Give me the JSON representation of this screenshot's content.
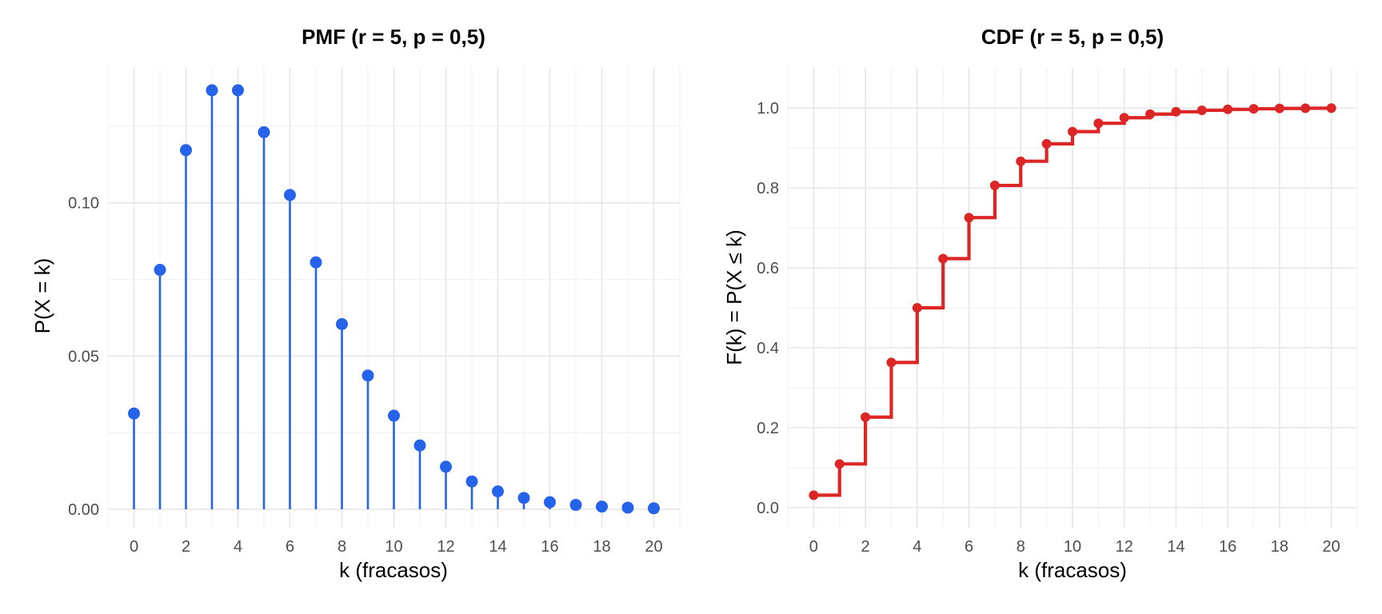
{
  "colors": {
    "pmf": "#2563eb",
    "cdf": "#dc2626"
  },
  "chart_data": [
    {
      "type": "line",
      "style": "stem",
      "title": "PMF  (r = 5, p = 0,5)",
      "xlabel": "k (fracasos)",
      "ylabel": "P(X = k)",
      "grid": true,
      "xlim": [
        -1,
        21
      ],
      "ylim": [
        -0.006,
        0.144
      ],
      "xticks": [
        0,
        2,
        4,
        6,
        8,
        10,
        12,
        14,
        16,
        18,
        20
      ],
      "xtick_labels": [
        "0",
        "2",
        "4",
        "6",
        "8",
        "10",
        "12",
        "14",
        "16",
        "18",
        "20"
      ],
      "yticks": [
        0,
        0.05,
        0.1
      ],
      "ytick_labels": [
        "0.00",
        "0.05",
        "0.10"
      ],
      "x": [
        0,
        1,
        2,
        3,
        4,
        5,
        6,
        7,
        8,
        9,
        10,
        11,
        12,
        13,
        14,
        15,
        16,
        17,
        18,
        19,
        20
      ],
      "values": [
        0.03125,
        0.078125,
        0.1171875,
        0.13671875,
        0.13671875,
        0.123046875,
        0.1025390625,
        0.0805664063,
        0.0604248047,
        0.0436401367,
        0.0305480957,
        0.0208282471,
        0.013885498,
        0.0090789795,
        0.0058364868,
        0.0036964417,
        0.002310276,
        0.0014268175,
        0.000871944,
        0.0005277029,
        0.0003166217
      ]
    },
    {
      "type": "line",
      "style": "step",
      "title": "CDF  (r = 5, p = 0,5)",
      "xlabel": "k (fracasos)",
      "ylabel": "F(k) = P(X ≤ k)",
      "grid": true,
      "xlim": [
        -1,
        21
      ],
      "ylim": [
        -0.05,
        1.1
      ],
      "xticks": [
        0,
        2,
        4,
        6,
        8,
        10,
        12,
        14,
        16,
        18,
        20
      ],
      "xtick_labels": [
        "0",
        "2",
        "4",
        "6",
        "8",
        "10",
        "12",
        "14",
        "16",
        "18",
        "20"
      ],
      "yticks": [
        0,
        0.2,
        0.4,
        0.6,
        0.8,
        1.0
      ],
      "ytick_labels": [
        "0.0",
        "0.2",
        "0.4",
        "0.6",
        "0.8",
        "1.0"
      ],
      "x": [
        0,
        1,
        2,
        3,
        4,
        5,
        6,
        7,
        8,
        9,
        10,
        11,
        12,
        13,
        14,
        15,
        16,
        17,
        18,
        19,
        20
      ],
      "values": [
        0.03125,
        0.109375,
        0.2265625,
        0.36328125,
        0.5,
        0.623046875,
        0.7255859375,
        0.8061523438,
        0.8665771484,
        0.9102172852,
        0.9407653809,
        0.9615936279,
        0.975479126,
        0.9845581055,
        0.9903945923,
        0.9940910339,
        0.99640131,
        0.9978281274,
        0.9987000714,
        0.9992277743,
        0.999544396
      ]
    }
  ]
}
